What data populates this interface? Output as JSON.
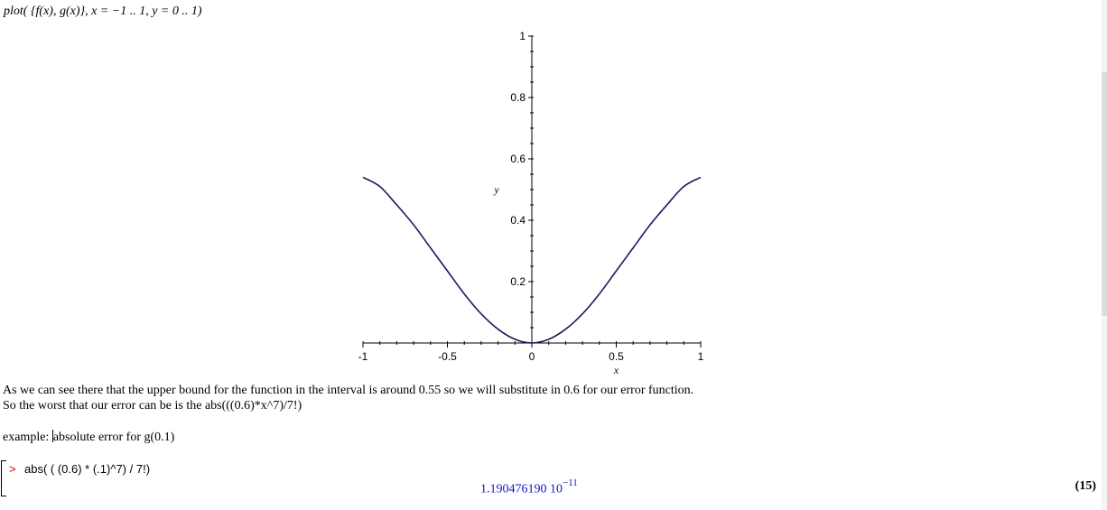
{
  "command": {
    "text": "plot( {f(x), g(x)}, x = −1 .. 1, y = 0 .. 1)"
  },
  "chart_data": {
    "type": "line",
    "xlabel": "x",
    "ylabel": "y",
    "xlim": [
      -1,
      1
    ],
    "ylim": [
      0,
      1
    ],
    "x_ticks": [
      "-1",
      "-0.5",
      "0",
      "0.5",
      "1"
    ],
    "y_ticks": [
      "0.2",
      "0.4",
      "0.6",
      "0.8",
      "1"
    ],
    "series_color": "#1a1a5c",
    "series": [
      {
        "x": [
          -1,
          -0.9,
          -0.8,
          -0.7,
          -0.6,
          -0.5,
          -0.4,
          -0.3,
          -0.2,
          -0.1,
          0,
          0.1,
          0.2,
          0.3,
          0.4,
          0.5,
          0.6,
          0.7,
          0.8,
          0.9,
          1
        ],
        "y": [
          0.54,
          0.51,
          0.45,
          0.385,
          0.31,
          0.235,
          0.16,
          0.095,
          0.045,
          0.012,
          0.0,
          0.012,
          0.045,
          0.095,
          0.16,
          0.235,
          0.31,
          0.385,
          0.45,
          0.51,
          0.54
        ]
      }
    ]
  },
  "text": {
    "line1": "As we can see there that the upper bound for the function in the interval is around 0.55 so we will substitute in 0.6 for our error function.",
    "line2": "So the worst that our error can be is the abs(((0.6)*x^7)/7!)",
    "example_prefix": "example: ",
    "example_rest": "absolute error for g(0.1)"
  },
  "input": {
    "prompt": ">",
    "command": "abs( ( (0.6) * (.1)^7) / 7!)"
  },
  "output": {
    "mantissa": "1.190476190 10",
    "exponent": "−11",
    "label": "(15)"
  },
  "colors": {
    "result": "#1010c8",
    "prompt": "#c00000"
  }
}
